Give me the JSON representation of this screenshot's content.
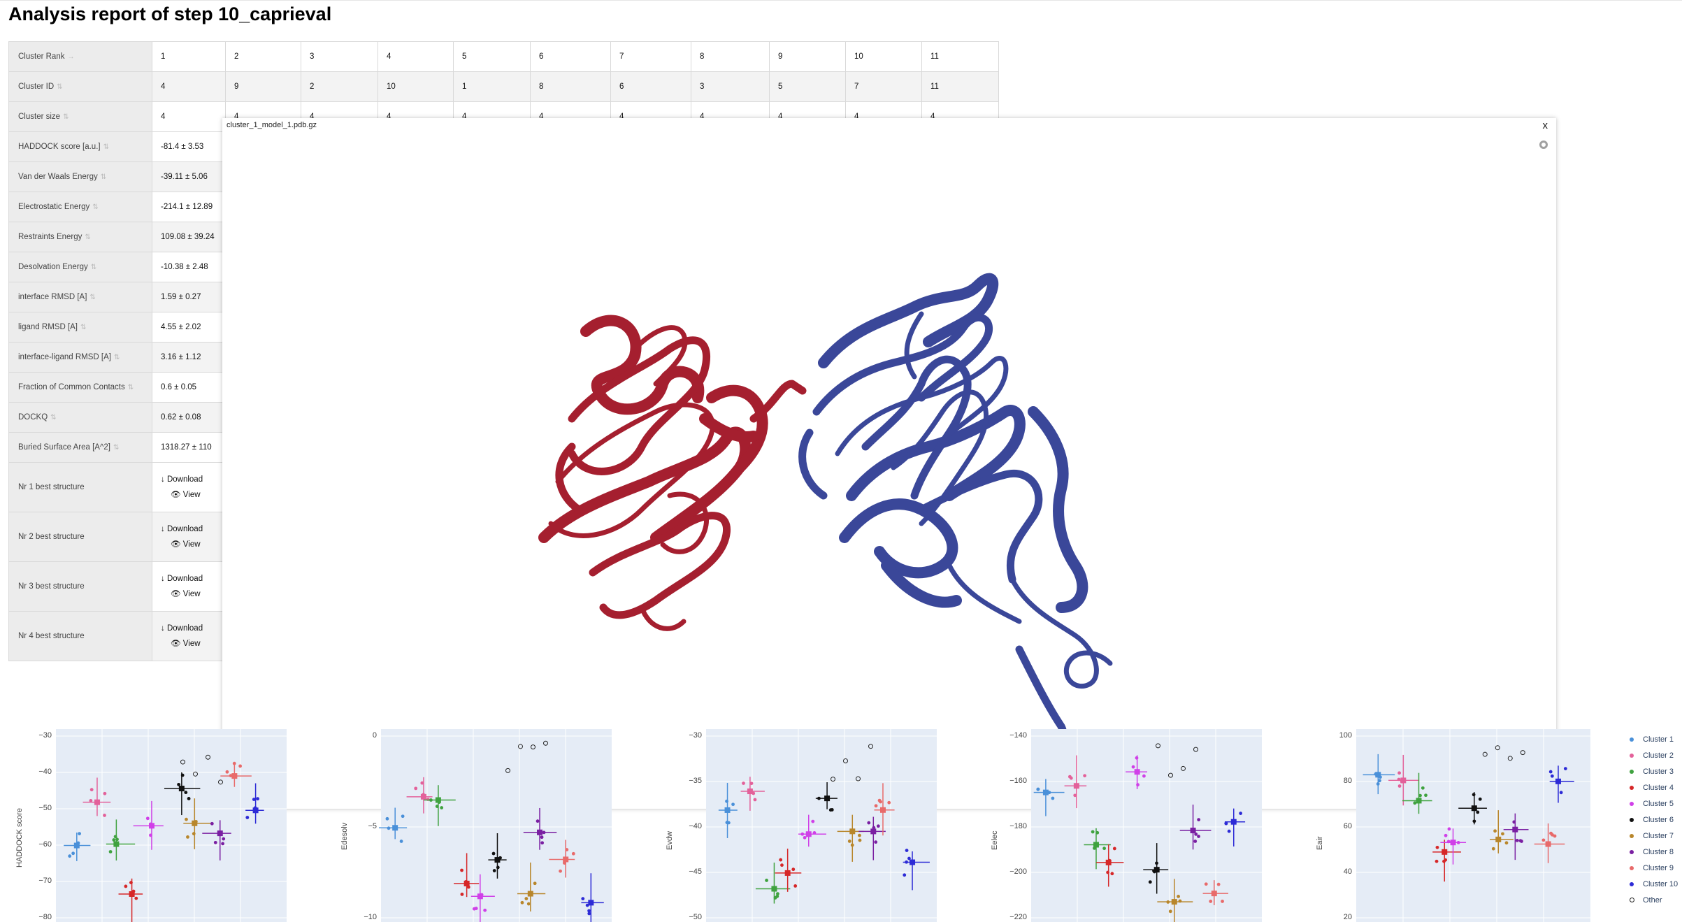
{
  "page": {
    "title": "Analysis report of step 10_caprieval"
  },
  "table": {
    "rank_row": {
      "label": "Cluster Rank",
      "arrow": "→",
      "values": [
        "1",
        "2",
        "3",
        "4",
        "5",
        "6",
        "7",
        "8",
        "9",
        "10",
        "11"
      ]
    },
    "id_row": {
      "label": "Cluster ID",
      "hint": "⇅",
      "values": [
        "4",
        "9",
        "2",
        "10",
        "1",
        "8",
        "6",
        "3",
        "5",
        "7",
        "11"
      ]
    },
    "size_row": {
      "label": "Cluster size",
      "hint": "⇅",
      "values": [
        "4",
        "4",
        "4",
        "4",
        "4",
        "4",
        "4",
        "4",
        "4",
        "4",
        "4"
      ]
    },
    "metric_rows": [
      {
        "label": "HADDOCK score [a.u.]",
        "hint": "⇅",
        "value": "-81.4 ± 3.53"
      },
      {
        "label": "Van der Waals Energy",
        "hint": "⇅",
        "value": "-39.11 ± 5.06"
      },
      {
        "label": "Electrostatic Energy",
        "hint": "⇅",
        "value": "-214.1 ± 12.89"
      },
      {
        "label": "Restraints Energy",
        "hint": "⇅",
        "value": "109.08 ± 39.24"
      },
      {
        "label": "Desolvation Energy",
        "hint": "⇅",
        "value": "-10.38 ± 2.48"
      },
      {
        "label": "interface RMSD [A]",
        "hint": "⇅",
        "value": "1.59 ± 0.27"
      },
      {
        "label": "ligand RMSD [A]",
        "hint": "⇅",
        "value": "4.55 ± 2.02"
      },
      {
        "label": "interface-ligand RMSD [A]",
        "hint": "⇅",
        "value": "3.16 ± 1.12"
      },
      {
        "label": "Fraction of Common Contacts",
        "hint": "⇅",
        "value": "0.6 ± 0.05"
      },
      {
        "label": "DOCKQ",
        "hint": "⇅",
        "value": "0.62 ± 0.08"
      },
      {
        "label": "Buried Surface Area [A^2]",
        "hint": "⇅",
        "value": "1318.27 ± 110"
      }
    ],
    "structure_rows": [
      {
        "label": "Nr 1 best structure",
        "download": "↓ Download",
        "view": "View"
      },
      {
        "label": "Nr 2 best structure",
        "download": "↓ Download",
        "view": "View"
      },
      {
        "label": "Nr 3 best structure",
        "download": "↓ Download",
        "view": "View"
      },
      {
        "label": "Nr 4 best structure",
        "download": "↓ Download",
        "view": "View"
      }
    ]
  },
  "modal": {
    "title": "cluster_1_model_1.pdb.gz",
    "close": "x",
    "ligand_color": "#a51f2f",
    "receptor_color": "#3a4799"
  },
  "plots": [
    {
      "ylabel": "HADDOCK score",
      "ticks": [
        "−30",
        "−40",
        "−50",
        "−60",
        "−70",
        "−80"
      ]
    },
    {
      "ylabel": "Edesolv",
      "ticks": [
        "0",
        "−5",
        "−10"
      ]
    },
    {
      "ylabel": "Evdw",
      "ticks": [
        "−30",
        "−35",
        "−40",
        "−45",
        "−50"
      ]
    },
    {
      "ylabel": "Eelec",
      "ticks": [
        "−140",
        "−160",
        "−180",
        "−200",
        "−220"
      ]
    },
    {
      "ylabel": "Eair",
      "ticks": [
        "100",
        "80",
        "60",
        "40",
        "20"
      ]
    }
  ],
  "legend": [
    {
      "label": "Cluster 1",
      "color": "#4a90d9"
    },
    {
      "label": "Cluster 2",
      "color": "#e3619a"
    },
    {
      "label": "Cluster 3",
      "color": "#3fa23f"
    },
    {
      "label": "Cluster 4",
      "color": "#d62728"
    },
    {
      "label": "Cluster 5",
      "color": "#d040e8"
    },
    {
      "label": "Cluster 6",
      "color": "#111111"
    },
    {
      "label": "Cluster 7",
      "color": "#b8862b"
    },
    {
      "label": "Cluster 8",
      "color": "#7a1fa2"
    },
    {
      "label": "Cluster 9",
      "color": "#e86a6a"
    },
    {
      "label": "Cluster 10",
      "color": "#2d2bd6"
    },
    {
      "label": "Other",
      "color": "#111111",
      "ring": true
    }
  ]
}
